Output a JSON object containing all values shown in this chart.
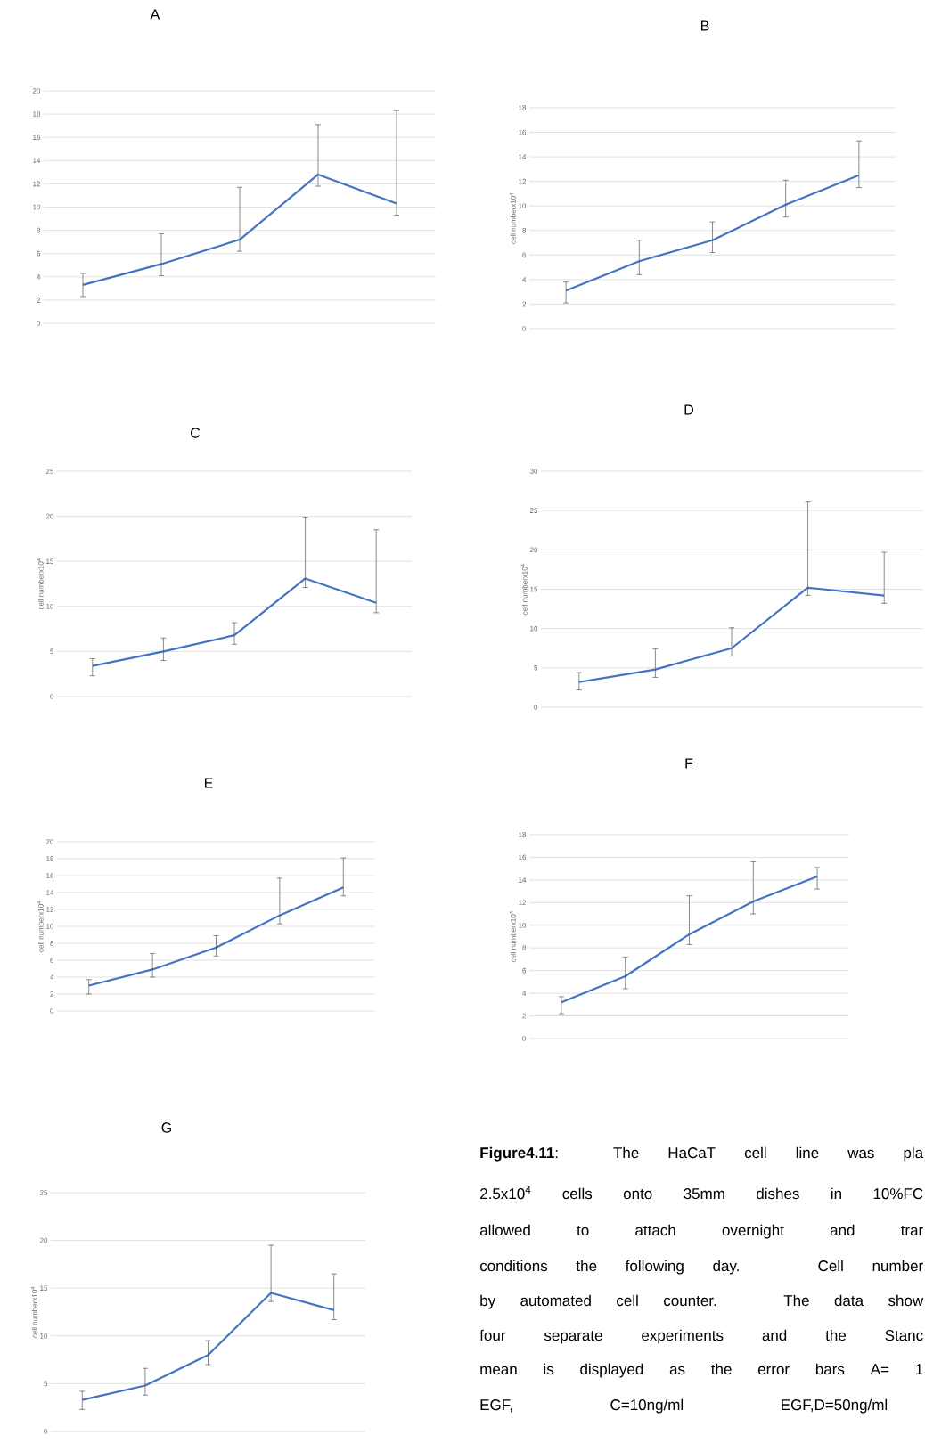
{
  "chart_data": [
    {
      "type": "line",
      "title": "A",
      "categories": [
        null,
        null,
        null,
        null,
        null
      ],
      "ylim": [
        0,
        20
      ],
      "yticks": [
        0,
        2,
        4,
        6,
        8,
        10,
        12,
        14,
        16,
        18,
        20
      ],
      "grid": "y",
      "series": [
        {
          "color": "#4472c4",
          "values": [
            3.3,
            5.1,
            7.2,
            12.8,
            10.3
          ],
          "errors": [
            [
              2.3,
              4.3
            ],
            [
              4.1,
              7.7
            ],
            [
              6.2,
              11.7
            ],
            [
              11.8,
              17.1
            ],
            [
              9.3,
              18.3
            ]
          ]
        }
      ]
    },
    {
      "type": "line",
      "title": "B",
      "ylabel": "cell numberx10$^{4}$",
      "categories": [
        null,
        null,
        null,
        null,
        null
      ],
      "ylim": [
        0,
        18
      ],
      "yticks": [
        0,
        2,
        4,
        6,
        8,
        10,
        12,
        14,
        16,
        18
      ],
      "grid": "y",
      "series": [
        {
          "color": "#4472c4",
          "values": [
            3.1,
            5.5,
            7.2,
            10.1,
            12.5
          ],
          "errors": [
            [
              2.1,
              3.8
            ],
            [
              4.4,
              7.2
            ],
            [
              6.2,
              8.7
            ],
            [
              9.1,
              12.1
            ],
            [
              11.5,
              15.3
            ]
          ]
        }
      ]
    },
    {
      "type": "line",
      "title": "C",
      "ylabel": "cell numberx10$^{4}$",
      "categories": [
        null,
        null,
        null,
        null,
        null
      ],
      "ylim": [
        0,
        25
      ],
      "yticks": [
        0,
        5,
        10,
        15,
        20,
        25
      ],
      "grid": "y",
      "series": [
        {
          "color": "#4472c4",
          "values": [
            3.4,
            5.0,
            6.8,
            13.1,
            10.4
          ],
          "errors": [
            [
              2.3,
              4.2
            ],
            [
              4.0,
              6.5
            ],
            [
              5.8,
              8.2
            ],
            [
              12.1,
              19.9
            ],
            [
              9.3,
              18.5
            ]
          ]
        }
      ]
    },
    {
      "type": "line",
      "title": "D",
      "ylabel": "cell numberx10$^{4}$",
      "categories": [
        null,
        null,
        null,
        null,
        null
      ],
      "ylim": [
        0,
        30
      ],
      "yticks": [
        0,
        5,
        10,
        15,
        20,
        25,
        30
      ],
      "grid": "y",
      "series": [
        {
          "color": "#4472c4",
          "values": [
            3.2,
            4.8,
            7.5,
            15.2,
            14.2
          ],
          "errors": [
            [
              2.2,
              4.4
            ],
            [
              3.8,
              7.4
            ],
            [
              6.5,
              10.1
            ],
            [
              14.2,
              26.1
            ],
            [
              13.2,
              19.7
            ]
          ]
        }
      ]
    },
    {
      "type": "line",
      "title": "E",
      "ylabel": "cell numberx10$^{4}$",
      "categories": [
        null,
        null,
        null,
        null,
        null
      ],
      "ylim": [
        0,
        20
      ],
      "yticks": [
        0,
        2,
        4,
        6,
        8,
        10,
        12,
        14,
        16,
        18,
        20
      ],
      "grid": "y",
      "series": [
        {
          "color": "#4472c4",
          "values": [
            3.0,
            4.9,
            7.5,
            11.3,
            14.6
          ],
          "errors": [
            [
              2.0,
              3.7
            ],
            [
              4.0,
              6.8
            ],
            [
              6.5,
              8.9
            ],
            [
              10.3,
              15.7
            ],
            [
              13.6,
              18.1
            ]
          ]
        }
      ]
    },
    {
      "type": "line",
      "title": "F",
      "ylabel": "cell numberx10$^{4}$",
      "categories": [
        null,
        null,
        null,
        null,
        null
      ],
      "ylim": [
        0,
        18
      ],
      "yticks": [
        0,
        2,
        4,
        6,
        8,
        10,
        12,
        14,
        16,
        18
      ],
      "grid": "y",
      "series": [
        {
          "color": "#4472c4",
          "values": [
            3.2,
            5.5,
            9.2,
            12.1,
            14.3
          ],
          "errors": [
            [
              2.2,
              3.7
            ],
            [
              4.4,
              7.2
            ],
            [
              8.3,
              12.6
            ],
            [
              11.0,
              15.6
            ],
            [
              13.2,
              15.1
            ]
          ]
        }
      ]
    },
    {
      "type": "line",
      "title": "G",
      "ylabel": "cell numberx10$^{4}$",
      "categories": [
        null,
        null,
        null,
        null,
        null
      ],
      "ylim": [
        0,
        25
      ],
      "yticks": [
        0,
        5,
        10,
        15,
        20,
        25
      ],
      "grid": "y",
      "series": [
        {
          "color": "#4472c4",
          "values": [
            3.3,
            4.8,
            8.0,
            14.5,
            12.7
          ],
          "errors": [
            [
              2.3,
              4.2
            ],
            [
              3.8,
              6.6
            ],
            [
              7.0,
              9.5
            ],
            [
              13.6,
              19.5
            ],
            [
              11.7,
              16.5
            ]
          ]
        }
      ]
    },
    {
      "type": "other",
      "annotations": [
        "**Figure4.11**: The HaCaT cell line was pla",
        "2.5x10$^{4}$ cells onto 35mm dishes in 10%FC",
        "allowed to attach overnight and trar",
        "conditions the following day. Cell number",
        "by automated cell counter. The data show",
        "four separate experiments and the Stanc",
        "mean is displayed as the error bars A= 1",
        "EGF, C=10ng/ml EGF,D=50ng/ml"
      ]
    }
  ]
}
